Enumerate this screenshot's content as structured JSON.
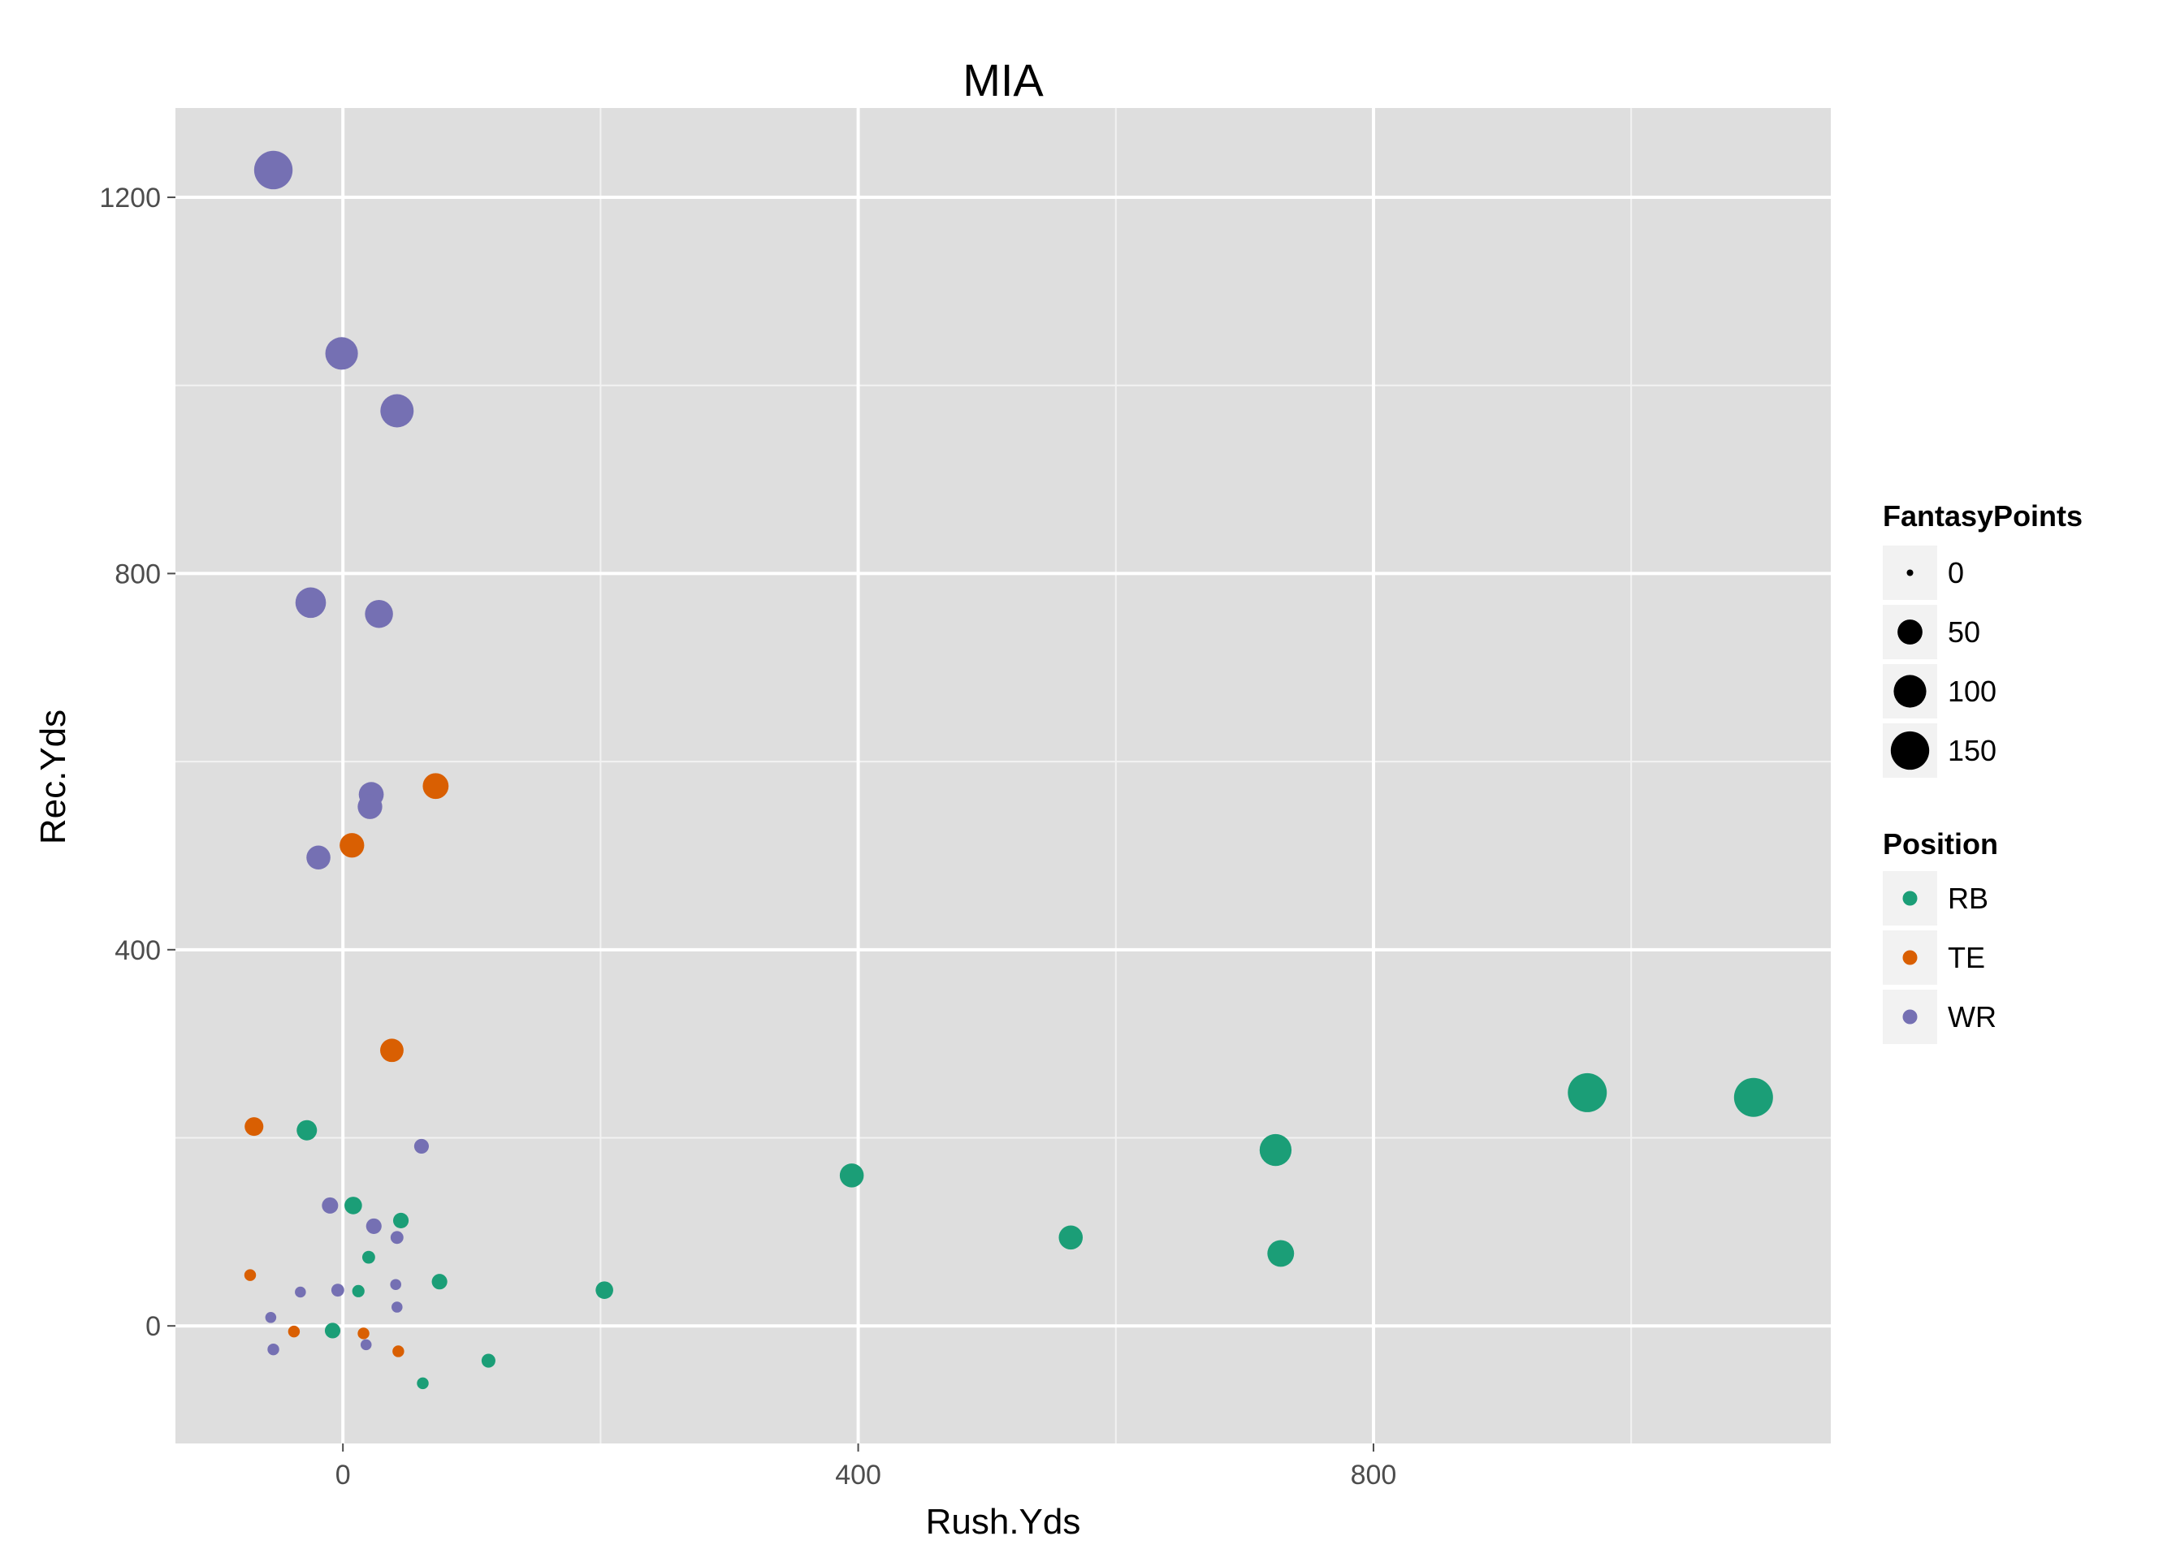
{
  "chart_data": {
    "type": "scatter",
    "title": "MIA",
    "xlabel": "Rush.Yds",
    "ylabel": "Rec.Yds",
    "xlim": [
      -130,
      1155
    ],
    "ylim": [
      -125,
      1295
    ],
    "x_ticks": [
      0,
      400,
      800
    ],
    "y_ticks": [
      0,
      400,
      800,
      1200
    ],
    "x_tick_labels": [
      "0",
      "400",
      "800"
    ],
    "y_tick_labels": [
      "0",
      "400",
      "800",
      "1200"
    ],
    "grid": true,
    "background": "#dedede",
    "legend_position": "right",
    "size_legend": {
      "title": "FantasyPoints",
      "entries": [
        {
          "label": "0",
          "value": 0
        },
        {
          "label": "50",
          "value": 50
        },
        {
          "label": "100",
          "value": 100
        },
        {
          "label": "150",
          "value": 150
        }
      ]
    },
    "color_legend": {
      "title": "Position",
      "entries": [
        {
          "label": "RB",
          "color": "#1b9e77"
        },
        {
          "label": "TE",
          "color": "#d95f02"
        },
        {
          "label": "WR",
          "color": "#7570b3"
        }
      ]
    },
    "series": [
      {
        "name": "RB",
        "color": "#1b9e77",
        "points": [
          {
            "x": 1095,
            "y": 243,
            "fp": 155
          },
          {
            "x": 966,
            "y": 248,
            "fp": 155
          },
          {
            "x": 724,
            "y": 187,
            "fp": 95
          },
          {
            "x": 728,
            "y": 77,
            "fp": 60
          },
          {
            "x": 565,
            "y": 94,
            "fp": 45
          },
          {
            "x": 395,
            "y": 160,
            "fp": 45
          },
          {
            "x": 203,
            "y": 38,
            "fp": 18
          },
          {
            "x": 75,
            "y": 47,
            "fp": 12
          },
          {
            "x": 113,
            "y": -37,
            "fp": 8
          },
          {
            "x": 62,
            "y": -61,
            "fp": 4
          },
          {
            "x": 45,
            "y": 112,
            "fp": 12
          },
          {
            "x": 8,
            "y": 128,
            "fp": 18
          },
          {
            "x": -28,
            "y": 208,
            "fp": 28
          },
          {
            "x": 20,
            "y": 73,
            "fp": 6
          },
          {
            "x": 12,
            "y": 37,
            "fp": 5
          },
          {
            "x": -8,
            "y": -5,
            "fp": 12
          }
        ]
      },
      {
        "name": "TE",
        "color": "#d95f02",
        "points": [
          {
            "x": 72,
            "y": 574,
            "fp": 55
          },
          {
            "x": 7,
            "y": 511,
            "fp": 48
          },
          {
            "x": 38,
            "y": 293,
            "fp": 42
          },
          {
            "x": -69,
            "y": 212,
            "fp": 22
          },
          {
            "x": -72,
            "y": 54,
            "fp": 4
          },
          {
            "x": -38,
            "y": -6,
            "fp": 4
          },
          {
            "x": 16,
            "y": -8,
            "fp": 4
          },
          {
            "x": 43,
            "y": -27,
            "fp": 4
          }
        ]
      },
      {
        "name": "WR",
        "color": "#7570b3",
        "points": [
          {
            "x": -54,
            "y": 1229,
            "fp": 150
          },
          {
            "x": -1,
            "y": 1034,
            "fp": 100
          },
          {
            "x": 42,
            "y": 973,
            "fp": 105
          },
          {
            "x": -25,
            "y": 769,
            "fp": 85
          },
          {
            "x": 28,
            "y": 757,
            "fp": 68
          },
          {
            "x": 22,
            "y": 565,
            "fp": 50
          },
          {
            "x": 21,
            "y": 552,
            "fp": 48
          },
          {
            "x": -19,
            "y": 498,
            "fp": 45
          },
          {
            "x": 61,
            "y": 191,
            "fp": 10
          },
          {
            "x": -10,
            "y": 128,
            "fp": 14
          },
          {
            "x": 24,
            "y": 106,
            "fp": 12
          },
          {
            "x": 42,
            "y": 94,
            "fp": 6
          },
          {
            "x": 41,
            "y": 44,
            "fp": 3
          },
          {
            "x": -4,
            "y": 38,
            "fp": 6
          },
          {
            "x": -33,
            "y": 36,
            "fp": 3
          },
          {
            "x": 42,
            "y": 20,
            "fp": 3
          },
          {
            "x": -56,
            "y": 9,
            "fp": 3
          },
          {
            "x": -54,
            "y": -25,
            "fp": 4
          },
          {
            "x": 18,
            "y": -20,
            "fp": 3
          }
        ]
      }
    ]
  }
}
